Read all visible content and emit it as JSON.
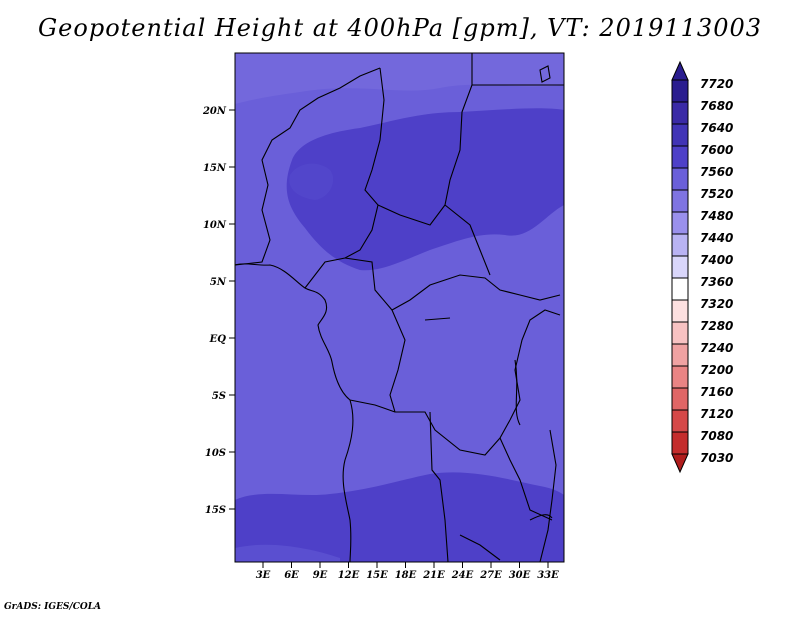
{
  "title": "Geopotential Height at 400hPa [gpm], VT: 2019113003",
  "credit": "GrADS: IGES/COLA",
  "map": {
    "lon_labels": [
      "3E",
      "6E",
      "9E",
      "12E",
      "15E",
      "18E",
      "21E",
      "24E",
      "27E",
      "30E",
      "33E"
    ],
    "lat_labels": [
      "20N",
      "15N",
      "10N",
      "5N",
      "EQ",
      "5S",
      "10S",
      "15S"
    ],
    "colors": {
      "level_7560": "#6a5fd9",
      "level_7600": "#4e40c8",
      "level_7640": "#4134b6",
      "coast": "#000000"
    }
  },
  "colorbar": {
    "levels": [
      "7720",
      "7680",
      "7640",
      "7600",
      "7560",
      "7520",
      "7480",
      "7440",
      "7400",
      "7360",
      "7320",
      "7280",
      "7240",
      "7200",
      "7160",
      "7120",
      "7080",
      "7030"
    ],
    "colors": [
      "#2a1d8f",
      "#3a2aa6",
      "#4134b6",
      "#4e40c8",
      "#6a5fd9",
      "#7f74e2",
      "#9a90ec",
      "#b9b3f3",
      "#d9d6fa",
      "#ffffff",
      "#fde0e0",
      "#f8c2c2",
      "#f0a2a2",
      "#e98484",
      "#e06666",
      "#d54848",
      "#c42c2c",
      "#b01c1c"
    ]
  }
}
